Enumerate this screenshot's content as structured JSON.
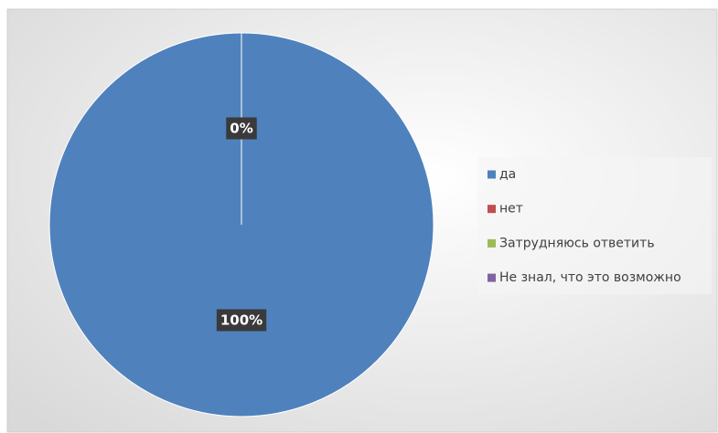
{
  "chart_data": {
    "type": "pie",
    "categories": [
      "да",
      "нет",
      "Затрудняюсь ответить",
      "Не знал, что это возможно"
    ],
    "values": [
      100,
      0,
      0,
      0
    ],
    "value_labels": [
      "100%",
      "0%",
      null,
      null
    ],
    "colors": [
      "#4f81bd",
      "#c0504d",
      "#9bbb59",
      "#8064a2"
    ],
    "legend": "right"
  }
}
